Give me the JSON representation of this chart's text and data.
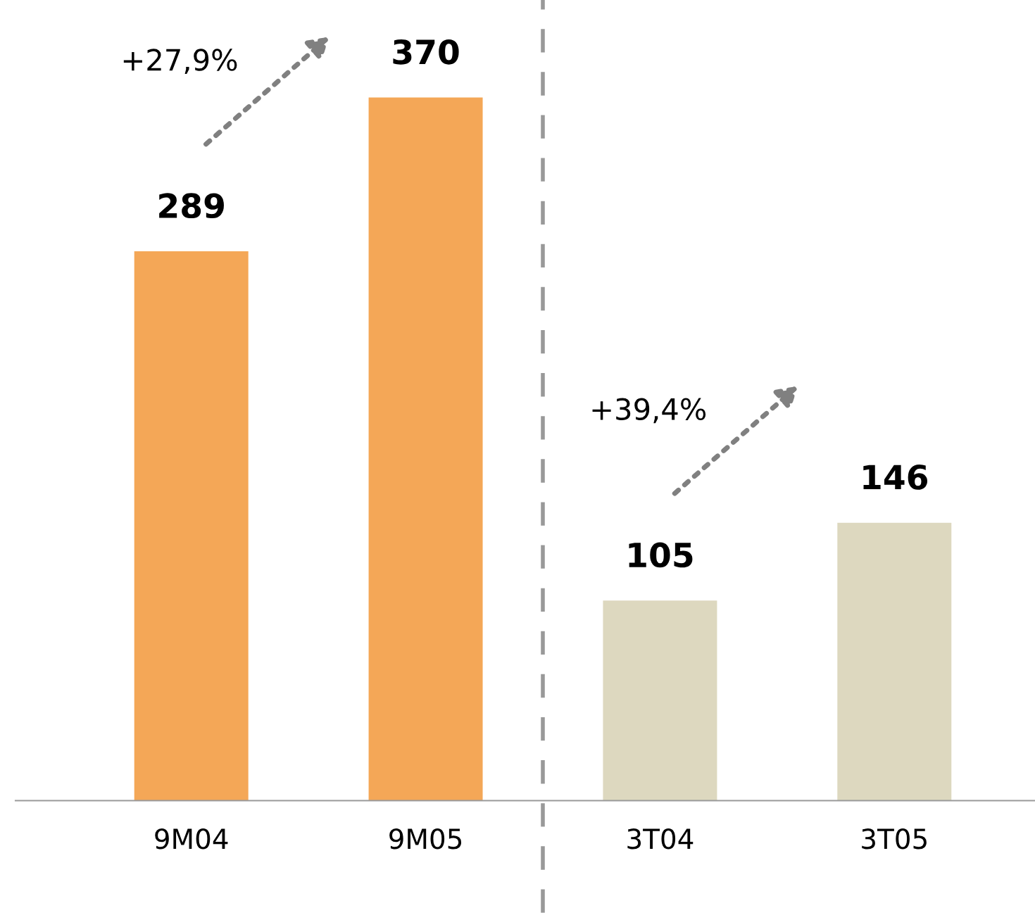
{
  "chart_data": {
    "type": "bar",
    "categories": [
      "9M04",
      "9M05",
      "3T04",
      "3T05"
    ],
    "values": [
      289,
      370,
      105,
      146
    ],
    "colors": [
      "#f4a757",
      "#f4a757",
      "#ddd8bf",
      "#ddd8bf"
    ],
    "data_labels": true,
    "annotations": [
      "+27,9%",
      "+39,4%"
    ],
    "grid": false,
    "legend": false
  }
}
